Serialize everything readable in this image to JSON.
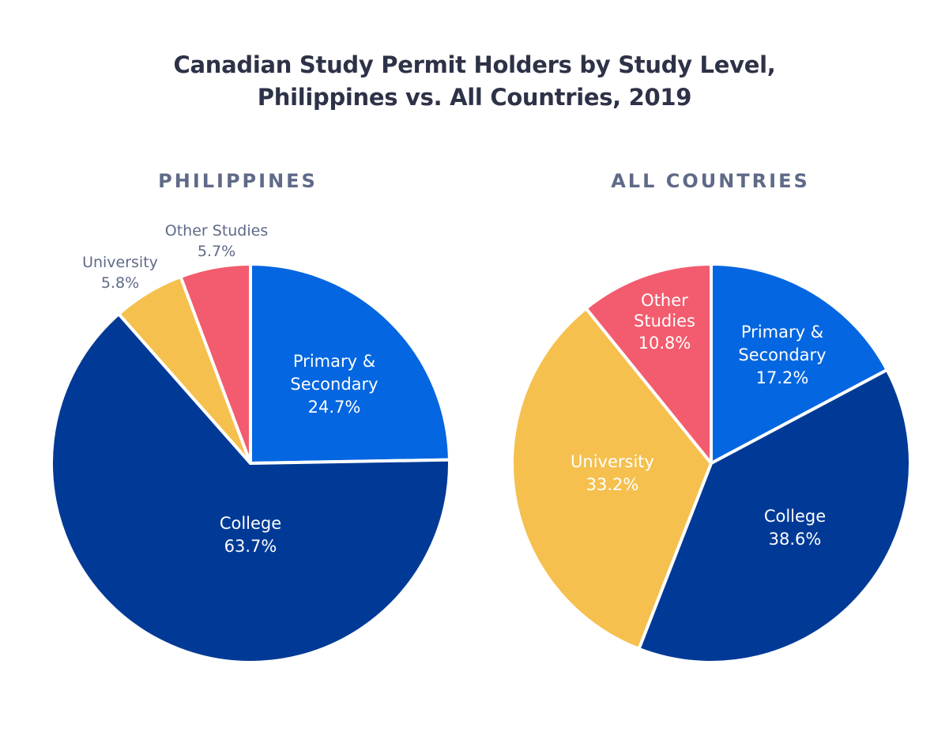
{
  "title_line1": "Canadian Study Permit Holders by Study Level,",
  "title_line2": "Philippines vs. All Countries, 2019",
  "colors": {
    "primary_secondary": "#0466e0",
    "college": "#003a96",
    "university": "#f5c04e",
    "other_studies": "#f25c6e",
    "title": "#2e3247",
    "subtitle": "#5f6a88"
  },
  "chart_data": [
    {
      "type": "pie",
      "title": "PHILIPPINES",
      "categories": [
        "Primary & Secondary",
        "College",
        "University",
        "Other Studies"
      ],
      "values": [
        24.7,
        63.7,
        5.8,
        5.7
      ],
      "unit": "%",
      "start_angle": "12 o'clock, clockwise",
      "labels": {
        "primary_secondary": [
          "Primary &",
          "Secondary",
          "24.7%"
        ],
        "college": [
          "College",
          "63.7%"
        ],
        "university": [
          "University",
          "5.8%"
        ],
        "other_studies": [
          "Other Studies",
          "5.7%"
        ]
      }
    },
    {
      "type": "pie",
      "title": "ALL COUNTRIES",
      "categories": [
        "Primary & Secondary",
        "College",
        "University",
        "Other Studies"
      ],
      "values": [
        17.2,
        38.6,
        33.2,
        10.8
      ],
      "unit": "%",
      "start_angle": "12 o'clock, clockwise",
      "labels": {
        "primary_secondary": [
          "Primary &",
          "Secondary",
          "17.2%"
        ],
        "college": [
          "College",
          "38.6%"
        ],
        "university": [
          "University",
          "33.2%"
        ],
        "other_studies": [
          "Other",
          "Studies",
          "10.8%"
        ]
      }
    }
  ]
}
